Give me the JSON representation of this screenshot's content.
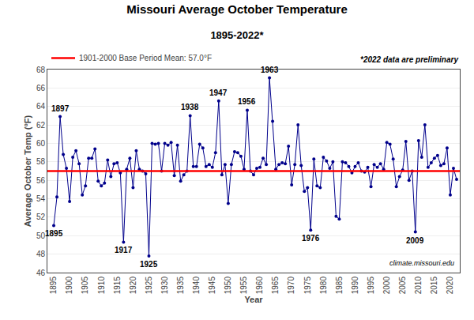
{
  "chart_data": {
    "type": "line",
    "title": "Missouri Average October Temperature",
    "subtitle": "1895-2022*",
    "xlabel": "Year",
    "ylabel": "Average October Temp (°F)",
    "x": [
      1895,
      1896,
      1897,
      1898,
      1899,
      1900,
      1901,
      1902,
      1903,
      1904,
      1905,
      1906,
      1907,
      1908,
      1909,
      1910,
      1911,
      1912,
      1913,
      1914,
      1915,
      1916,
      1917,
      1918,
      1919,
      1920,
      1921,
      1922,
      1923,
      1924,
      1925,
      1926,
      1927,
      1928,
      1929,
      1930,
      1931,
      1932,
      1933,
      1934,
      1935,
      1936,
      1937,
      1938,
      1939,
      1940,
      1941,
      1942,
      1943,
      1944,
      1945,
      1946,
      1947,
      1948,
      1949,
      1950,
      1951,
      1952,
      1953,
      1954,
      1955,
      1956,
      1957,
      1958,
      1959,
      1960,
      1961,
      1962,
      1963,
      1964,
      1965,
      1966,
      1967,
      1968,
      1969,
      1970,
      1971,
      1972,
      1973,
      1974,
      1975,
      1976,
      1977,
      1978,
      1979,
      1980,
      1981,
      1982,
      1983,
      1984,
      1985,
      1986,
      1987,
      1988,
      1989,
      1990,
      1991,
      1992,
      1993,
      1994,
      1995,
      1996,
      1997,
      1998,
      1999,
      2000,
      2001,
      2002,
      2003,
      2004,
      2005,
      2006,
      2007,
      2008,
      2009,
      2010,
      2011,
      2012,
      2013,
      2014,
      2015,
      2016,
      2017,
      2018,
      2019,
      2020,
      2021,
      2022
    ],
    "series": [
      {
        "color": "#00008B",
        "marker": "circle",
        "values": [
          51.1,
          54.2,
          62.9,
          58.8,
          57.3,
          53.7,
          58.5,
          59.2,
          57.8,
          54.4,
          55.4,
          58.4,
          58.4,
          59.4,
          55.9,
          55.4,
          55.7,
          58.2,
          56.4,
          57.8,
          57.9,
          56.8,
          49.3,
          57.2,
          58.4,
          55.2,
          59.2,
          57.2,
          57.0,
          56.7,
          47.8,
          60.0,
          59.9,
          60.0,
          57.0,
          60.0,
          59.8,
          60.1,
          56.5,
          59.8,
          55.9,
          56.6,
          57.0,
          63.0,
          57.5,
          57.5,
          59.9,
          59.5,
          57.5,
          57.7,
          57.4,
          59.0,
          64.6,
          56.6,
          57.7,
          53.5,
          57.7,
          59.1,
          59.0,
          58.6,
          57.2,
          63.6,
          57.0,
          56.6,
          57.3,
          57.4,
          58.4,
          57.7,
          67.1,
          62.4,
          57.2,
          57.7,
          57.9,
          57.8,
          59.7,
          55.5,
          57.7,
          62.0,
          57.6,
          54.8,
          55.2,
          50.6,
          58.3,
          55.4,
          55.2,
          58.5,
          58.1,
          57.3,
          58.0,
          52.1,
          51.8,
          58.0,
          57.9,
          57.5,
          56.8,
          57.5,
          57.9,
          57.0,
          56.9,
          57.4,
          55.3,
          57.7,
          57.4,
          57.8,
          57.2,
          60.1,
          59.9,
          58.3,
          55.3,
          56.4,
          57.1,
          60.2,
          56.0,
          57.0,
          50.4,
          60.3,
          58.5,
          62.0,
          57.4,
          57.9,
          58.4,
          58.7,
          57.6,
          57.8,
          59.5,
          54.4,
          57.3,
          56.1
        ]
      }
    ],
    "mean": {
      "value": 57.0,
      "label": "1901-2000 Base Period Mean: 57.0°F",
      "color": "#FF0000"
    },
    "annotations": [
      {
        "text": "1895",
        "x": 1895
      },
      {
        "text": "1897",
        "x": 1897
      },
      {
        "text": "1917",
        "x": 1917
      },
      {
        "text": "1925",
        "x": 1925
      },
      {
        "text": "1938",
        "x": 1938
      },
      {
        "text": "1947",
        "x": 1947
      },
      {
        "text": "1956",
        "x": 1956
      },
      {
        "text": "1963",
        "x": 1963
      },
      {
        "text": "1976",
        "x": 1976
      },
      {
        "text": "2009",
        "x": 2009
      },
      {
        "text": "*2022 data are preliminary"
      },
      {
        "text": "climate.missouri.edu"
      }
    ],
    "xlim": [
      1893,
      2023
    ],
    "xticks": [
      1895,
      1900,
      1905,
      1910,
      1915,
      1920,
      1925,
      1930,
      1935,
      1940,
      1945,
      1950,
      1955,
      1960,
      1965,
      1970,
      1975,
      1980,
      1985,
      1990,
      1995,
      2000,
      2005,
      2010,
      2015,
      2020
    ],
    "ylim": [
      46,
      68
    ],
    "yticks": [
      46,
      48,
      50,
      52,
      54,
      56,
      58,
      60,
      62,
      64,
      66,
      68
    ],
    "grid": "y",
    "legend": "top left"
  }
}
